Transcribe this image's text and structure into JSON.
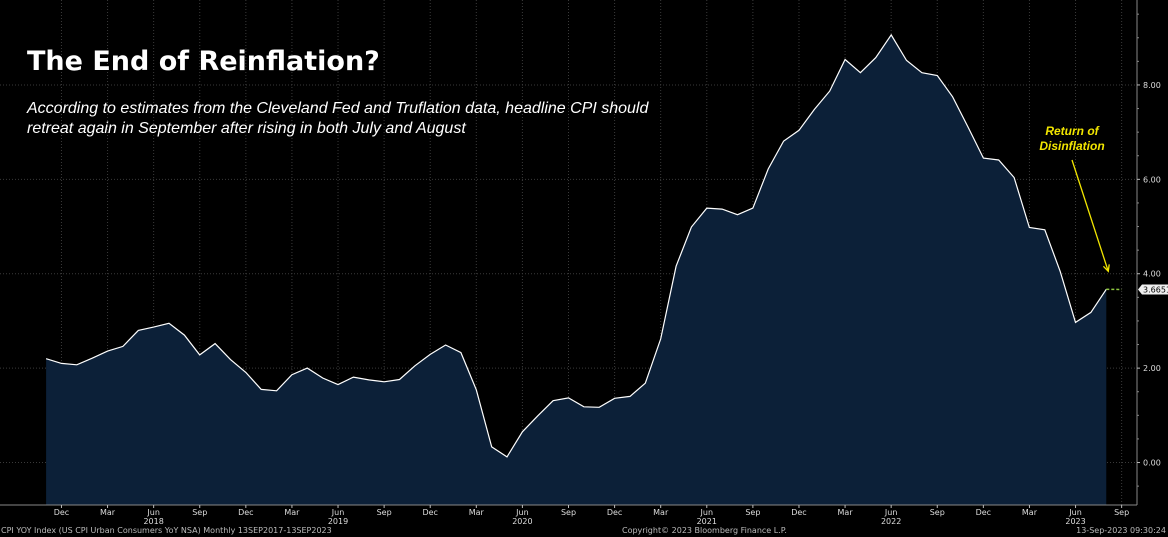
{
  "title": "The End of Reinflation?",
  "subtitle": "According to estimates from the Cleveland Fed and Truflation data, headline CPI should retreat again in September after rising in both July and August",
  "annotation": "Return of Disinflation",
  "last_value_label": "3.6651",
  "footer": {
    "left": "CPI YOY Index (US CPI Urban Consumers YoY NSA)  Monthly 13SEP2017-13SEP2023",
    "center": "Copyright© 2023 Bloomberg Finance L.P.",
    "right": "13-Sep-2023 09:30:24"
  },
  "colors": {
    "background": "#000000",
    "area_fill": "#0c2038",
    "line": "#ffffff",
    "grid": "#3a3a3a",
    "annotation": "#f2e600",
    "estimate": "#8ec63f"
  },
  "chart_data": {
    "type": "area",
    "title": "The End of Reinflation?",
    "x": [
      "2017-11",
      "2017-12",
      "2018-01",
      "2018-02",
      "2018-03",
      "2018-04",
      "2018-05",
      "2018-06",
      "2018-07",
      "2018-08",
      "2018-09",
      "2018-10",
      "2018-11",
      "2018-12",
      "2019-01",
      "2019-02",
      "2019-03",
      "2019-04",
      "2019-05",
      "2019-06",
      "2019-07",
      "2019-08",
      "2019-09",
      "2019-10",
      "2019-11",
      "2019-12",
      "2020-01",
      "2020-02",
      "2020-03",
      "2020-04",
      "2020-05",
      "2020-06",
      "2020-07",
      "2020-08",
      "2020-09",
      "2020-10",
      "2020-11",
      "2020-12",
      "2021-01",
      "2021-02",
      "2021-03",
      "2021-04",
      "2021-05",
      "2021-06",
      "2021-07",
      "2021-08",
      "2021-09",
      "2021-10",
      "2021-11",
      "2021-12",
      "2022-01",
      "2022-02",
      "2022-03",
      "2022-04",
      "2022-05",
      "2022-06",
      "2022-07",
      "2022-08",
      "2022-09",
      "2022-10",
      "2022-11",
      "2022-12",
      "2023-01",
      "2023-02",
      "2023-03",
      "2023-04",
      "2023-05",
      "2023-06",
      "2023-07",
      "2023-08"
    ],
    "values": [
      2.2,
      2.1,
      2.07,
      2.21,
      2.36,
      2.46,
      2.8,
      2.87,
      2.95,
      2.7,
      2.28,
      2.52,
      2.18,
      1.91,
      1.55,
      1.52,
      1.86,
      2.0,
      1.79,
      1.65,
      1.81,
      1.75,
      1.71,
      1.76,
      2.05,
      2.29,
      2.49,
      2.33,
      1.54,
      0.33,
      0.12,
      0.65,
      0.99,
      1.31,
      1.37,
      1.18,
      1.17,
      1.36,
      1.4,
      1.68,
      2.62,
      4.16,
      4.99,
      5.39,
      5.37,
      5.25,
      5.39,
      6.22,
      6.81,
      7.04,
      7.48,
      7.87,
      8.54,
      8.26,
      8.58,
      9.06,
      8.52,
      8.26,
      8.2,
      7.75,
      7.11,
      6.45,
      6.41,
      6.04,
      4.98,
      4.93,
      4.05,
      2.97,
      3.18,
      3.67
    ],
    "estimate": {
      "x": [
        "2023-08",
        "2023-09"
      ],
      "values": [
        3.67,
        3.6651
      ]
    },
    "yticks": [
      0,
      2,
      4,
      6,
      8
    ],
    "ytick_labels": [
      "0.00",
      "2.00",
      "4.00",
      "6.00",
      "8.00"
    ],
    "ylim": [
      -0.9,
      9.8
    ],
    "grid": true,
    "xtick_labels": [
      {
        "month": "Dec",
        "year": "",
        "date": "2017-12"
      },
      {
        "month": "Mar",
        "year": "",
        "date": "2018-03"
      },
      {
        "month": "Jun",
        "year": "2018",
        "date": "2018-06"
      },
      {
        "month": "Sep",
        "year": "",
        "date": "2018-09"
      },
      {
        "month": "Dec",
        "year": "",
        "date": "2018-12"
      },
      {
        "month": "Mar",
        "year": "",
        "date": "2019-03"
      },
      {
        "month": "Jun",
        "year": "2019",
        "date": "2019-06"
      },
      {
        "month": "Sep",
        "year": "",
        "date": "2019-09"
      },
      {
        "month": "Dec",
        "year": "",
        "date": "2019-12"
      },
      {
        "month": "Mar",
        "year": "",
        "date": "2020-03"
      },
      {
        "month": "Jun",
        "year": "2020",
        "date": "2020-06"
      },
      {
        "month": "Sep",
        "year": "",
        "date": "2020-09"
      },
      {
        "month": "Dec",
        "year": "",
        "date": "2020-12"
      },
      {
        "month": "Mar",
        "year": "",
        "date": "2021-03"
      },
      {
        "month": "Jun",
        "year": "2021",
        "date": "2021-06"
      },
      {
        "month": "Sep",
        "year": "",
        "date": "2021-09"
      },
      {
        "month": "Dec",
        "year": "",
        "date": "2021-12"
      },
      {
        "month": "Mar",
        "year": "",
        "date": "2022-03"
      },
      {
        "month": "Jun",
        "year": "2022",
        "date": "2022-06"
      },
      {
        "month": "Sep",
        "year": "",
        "date": "2022-09"
      },
      {
        "month": "Dec",
        "year": "",
        "date": "2022-12"
      },
      {
        "month": "Mar",
        "year": "",
        "date": "2023-03"
      },
      {
        "month": "Jun",
        "year": "2023",
        "date": "2023-06"
      },
      {
        "month": "Sep",
        "year": "",
        "date": "2023-09"
      }
    ]
  }
}
